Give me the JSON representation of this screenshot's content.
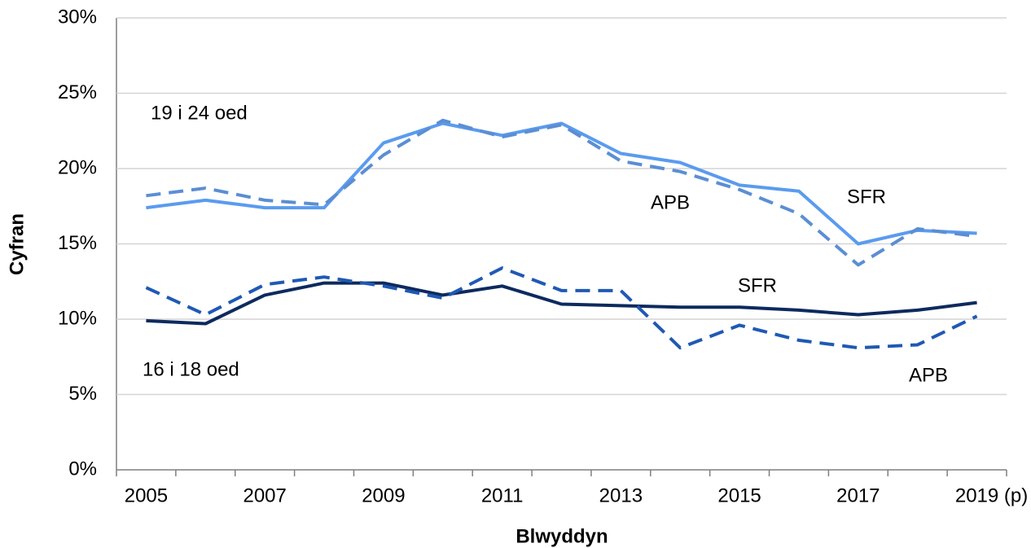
{
  "chart_data": {
    "type": "line",
    "x_label": "Blwyddyn",
    "y_label": "Cyfran",
    "categories": [
      "2005",
      null,
      "2007",
      null,
      "2009",
      null,
      "2011",
      null,
      "2013",
      null,
      "2015",
      null,
      "2017",
      null,
      "2019 (p)"
    ],
    "series": [
      {
        "color": "#5a9bef",
        "dashed": false,
        "values": [
          17.4,
          17.9,
          17.4,
          17.4,
          21.7,
          23.0,
          22.2,
          23.0,
          21.0,
          20.4,
          18.9,
          18.5,
          15.0,
          15.9,
          15.7
        ]
      },
      {
        "color": "#5b8ed3",
        "dashed": true,
        "values": [
          18.2,
          18.7,
          17.9,
          17.6,
          20.9,
          23.2,
          22.1,
          22.9,
          20.5,
          19.8,
          18.6,
          17.0,
          13.6,
          16.0,
          15.5
        ]
      },
      {
        "color": "#0d2a5e",
        "dashed": false,
        "values": [
          9.9,
          9.7,
          11.6,
          12.4,
          12.4,
          11.6,
          12.2,
          11.0,
          10.9,
          10.8,
          10.8,
          10.6,
          10.3,
          10.6,
          11.1
        ]
      },
      {
        "color": "#1f59b4",
        "dashed": true,
        "values": [
          12.1,
          10.3,
          12.3,
          12.8,
          12.2,
          11.4,
          13.4,
          11.9,
          11.9,
          8.1,
          9.6,
          8.6,
          8.1,
          8.3,
          10.2
        ]
      }
    ],
    "annotations": [
      "19 i 24 oed",
      "16 i 18 oed",
      "APB",
      "SFR",
      "SFR",
      "APB"
    ],
    "ylim": [
      0,
      30
    ],
    "yticks": [
      {
        "value": 0,
        "label": "0%"
      },
      {
        "value": 5,
        "label": "5%"
      },
      {
        "value": 10,
        "label": "10%"
      },
      {
        "value": 15,
        "label": "15%"
      },
      {
        "value": 20,
        "label": "20%"
      },
      {
        "value": 25,
        "label": "25%"
      },
      {
        "value": 30,
        "label": "30%"
      }
    ],
    "grid": true
  }
}
